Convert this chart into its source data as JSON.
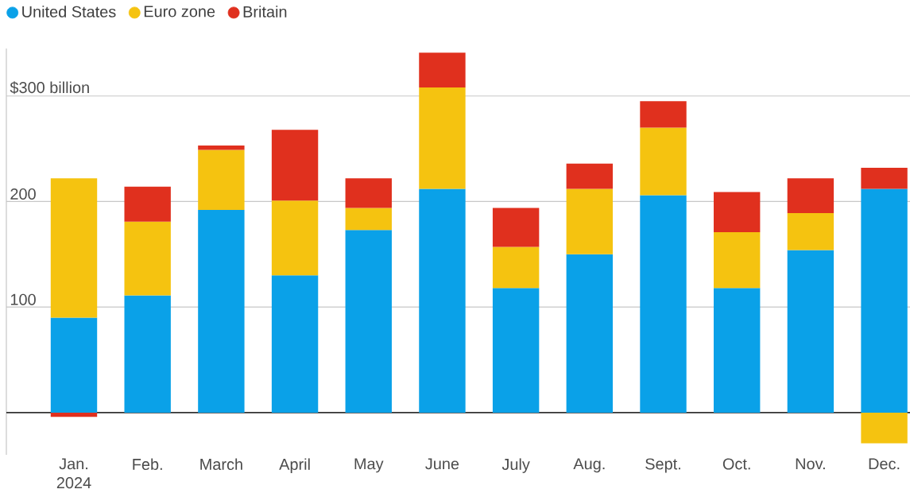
{
  "chart_data": {
    "type": "bar",
    "stacked": true,
    "categories": [
      "Jan. 2024",
      "Feb.",
      "March",
      "April",
      "May",
      "June",
      "July",
      "Aug.",
      "Sept.",
      "Oct.",
      "Nov.",
      "Dec."
    ],
    "series": [
      {
        "name": "United States",
        "color": "#0aa1e8",
        "values": [
          90,
          111,
          192,
          130,
          173,
          212,
          118,
          150,
          206,
          118,
          154,
          212
        ]
      },
      {
        "name": "Euro zone",
        "color": "#f5c310",
        "values": [
          132,
          70,
          57,
          71,
          21,
          96,
          39,
          62,
          64,
          53,
          35,
          -29
        ]
      },
      {
        "name": "Britain",
        "color": "#e0301e",
        "values": [
          -4,
          33,
          4,
          67,
          28,
          33,
          37,
          24,
          25,
          38,
          33,
          20
        ]
      }
    ],
    "ylim": [
      -40,
      345
    ],
    "yticks": [
      100,
      200,
      {
        "value": 300,
        "label": "$300 billion"
      }
    ],
    "grid": "y",
    "legend": "top left"
  }
}
